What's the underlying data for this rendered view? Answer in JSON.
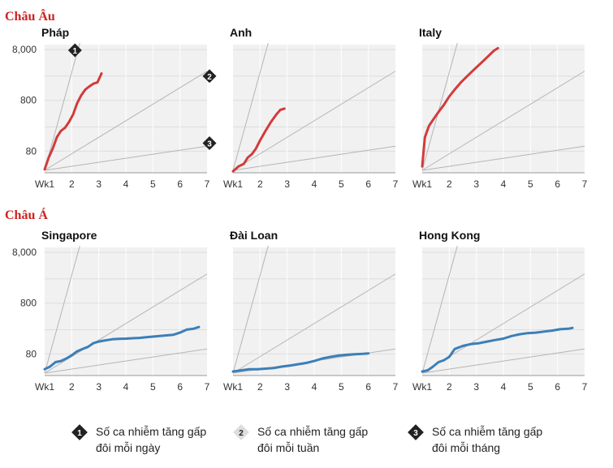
{
  "regions": [
    "Châu Âu",
    "Châu Á"
  ],
  "panel_titles": [
    "Pháp",
    "Anh",
    "Italy",
    "Singapore",
    "Đài Loan",
    "Hong Kong"
  ],
  "colors": {
    "europe": "#d23b3b",
    "asia": "#3b7fb8",
    "region_label": "#cc2222",
    "panel_bg": "#f1f1f1",
    "grid": "#ffffff",
    "reference": "#b5b5b5"
  },
  "legend": [
    {
      "number": "1",
      "text_line1": "Số ca nhiễm tăng gấp",
      "text_line2": "đôi mỗi ngày",
      "style": "dark"
    },
    {
      "number": "2",
      "text_line1": "Số ca nhiễm tăng gấp",
      "text_line2": "đôi mỗi tuần",
      "style": "light"
    },
    {
      "number": "3",
      "text_line1": "Số ca nhiễm tăng gấp",
      "text_line2": "đôi mỗi tháng",
      "style": "dark"
    }
  ],
  "chart_data": [
    {
      "type": "line",
      "region": "Châu Âu",
      "title": "Pháp",
      "ylog": true,
      "x_ticks": [
        "Wk1",
        "2",
        "3",
        "4",
        "5",
        "6",
        "7"
      ],
      "y_ticks": [
        "80",
        "800",
        "8,000"
      ],
      "xlim": [
        1,
        7
      ],
      "ylim": [
        30,
        10000
      ],
      "reference_lines": [
        {
          "label": "1",
          "doubling": "daily"
        },
        {
          "label": "2",
          "doubling": "weekly"
        },
        {
          "label": "3",
          "doubling": "monthly"
        }
      ],
      "series": [
        {
          "color": "#d23b3b",
          "x": [
            1.0,
            1.15,
            1.3,
            1.45,
            1.6,
            1.75,
            1.9,
            2.05,
            2.2,
            2.35,
            2.5,
            2.65,
            2.8,
            2.95,
            3.1
          ],
          "y": [
            35,
            60,
            90,
            150,
            200,
            230,
            300,
            420,
            700,
            1000,
            1300,
            1500,
            1700,
            1800,
            2700
          ]
        }
      ]
    },
    {
      "type": "line",
      "region": "Châu Âu",
      "title": "Anh",
      "ylog": true,
      "x_ticks": [
        "Wk1",
        "2",
        "3",
        "4",
        "5",
        "6",
        "7"
      ],
      "y_ticks": [],
      "xlim": [
        1,
        7
      ],
      "ylim": [
        30,
        10000
      ],
      "series": [
        {
          "color": "#d23b3b",
          "x": [
            1.0,
            1.2,
            1.4,
            1.55,
            1.7,
            1.85,
            2.0,
            2.2,
            2.4,
            2.6,
            2.75,
            2.9
          ],
          "y": [
            32,
            40,
            45,
            60,
            70,
            90,
            130,
            200,
            300,
            420,
            520,
            550
          ]
        }
      ]
    },
    {
      "type": "line",
      "region": "Châu Âu",
      "title": "Italy",
      "ylog": true,
      "x_ticks": [
        "Wk1",
        "2",
        "3",
        "4",
        "5",
        "6",
        "7"
      ],
      "y_ticks": [],
      "xlim": [
        1,
        7
      ],
      "ylim": [
        30,
        10000
      ],
      "series": [
        {
          "color": "#d23b3b",
          "x": [
            1.0,
            1.1,
            1.25,
            1.4,
            1.6,
            1.8,
            2.0,
            2.2,
            2.45,
            2.7,
            2.95,
            3.2,
            3.45,
            3.65,
            3.8
          ],
          "y": [
            40,
            150,
            250,
            330,
            470,
            650,
            950,
            1300,
            1850,
            2500,
            3350,
            4450,
            6000,
            7600,
            8500
          ]
        }
      ]
    },
    {
      "type": "line",
      "region": "Châu Á",
      "title": "Singapore",
      "ylog": true,
      "x_ticks": [
        "Wk1",
        "2",
        "3",
        "4",
        "5",
        "6",
        "7"
      ],
      "y_ticks": [
        "80",
        "800",
        "8,000"
      ],
      "xlim": [
        1,
        7
      ],
      "ylim": [
        30,
        10000
      ],
      "series": [
        {
          "color": "#3b7fb8",
          "x": [
            1.0,
            1.2,
            1.4,
            1.6,
            1.8,
            2.0,
            2.2,
            2.4,
            2.6,
            2.8,
            3.0,
            3.25,
            3.5,
            3.75,
            4.0,
            4.25,
            4.5,
            4.75,
            5.0,
            5.25,
            5.5,
            5.75,
            6.0,
            6.25,
            6.5,
            6.7
          ],
          "y": [
            40,
            45,
            55,
            58,
            65,
            75,
            90,
            100,
            110,
            130,
            140,
            148,
            155,
            158,
            160,
            163,
            165,
            170,
            175,
            180,
            185,
            190,
            210,
            240,
            250,
            270
          ]
        }
      ]
    },
    {
      "type": "line",
      "region": "Châu Á",
      "title": "Đài Loan",
      "ylog": true,
      "x_ticks": [
        "Wk1",
        "2",
        "3",
        "4",
        "5",
        "6",
        "7"
      ],
      "y_ticks": [],
      "xlim": [
        1,
        7
      ],
      "ylim": [
        30,
        10000
      ],
      "series": [
        {
          "color": "#3b7fb8",
          "x": [
            1.0,
            1.3,
            1.6,
            1.9,
            2.2,
            2.5,
            2.8,
            3.1,
            3.4,
            3.7,
            4.0,
            4.3,
            4.6,
            4.9,
            5.2,
            5.5,
            5.8,
            6.0
          ],
          "y": [
            36,
            38,
            40,
            40,
            41,
            42,
            45,
            47,
            50,
            53,
            58,
            65,
            70,
            74,
            77,
            79,
            80,
            82
          ]
        }
      ]
    },
    {
      "type": "line",
      "region": "Châu Á",
      "title": "Hong Kong",
      "ylog": true,
      "x_ticks": [
        "Wk1",
        "2",
        "3",
        "4",
        "5",
        "6",
        "7"
      ],
      "y_ticks": [],
      "xlim": [
        1,
        7
      ],
      "ylim": [
        30,
        10000
      ],
      "series": [
        {
          "color": "#3b7fb8",
          "x": [
            1.0,
            1.2,
            1.4,
            1.6,
            1.8,
            2.0,
            2.2,
            2.5,
            2.8,
            3.1,
            3.4,
            3.7,
            4.0,
            4.3,
            4.6,
            4.9,
            5.2,
            5.5,
            5.8,
            6.1,
            6.4,
            6.55
          ],
          "y": [
            36,
            38,
            45,
            55,
            60,
            70,
            100,
            115,
            125,
            130,
            140,
            150,
            160,
            180,
            195,
            205,
            210,
            220,
            230,
            245,
            250,
            260
          ]
        }
      ]
    }
  ]
}
